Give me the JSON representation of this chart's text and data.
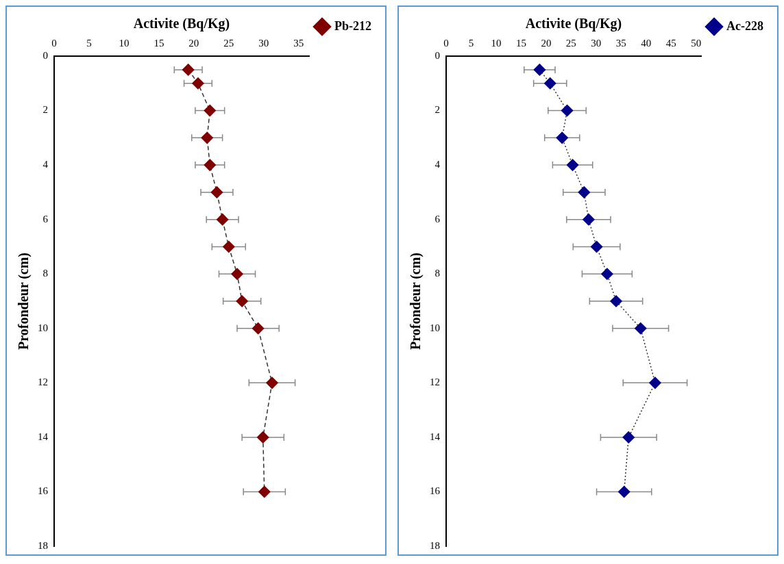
{
  "chart_data": [
    {
      "type": "line",
      "xlabel": "Activite (Bq/Kg)",
      "ylabel": "Profondeur (cm)",
      "xlim": [
        0,
        36.5
      ],
      "xticks": [
        0,
        5,
        10,
        15,
        20,
        25,
        30,
        35
      ],
      "ylim": [
        18,
        0
      ],
      "yticks": [
        0,
        2,
        4,
        6,
        8,
        10,
        12,
        14,
        16,
        18
      ],
      "grid": false,
      "legend": "top right",
      "marker": "diamond",
      "series": [
        {
          "name": "Pb-212",
          "color": "#7f0000",
          "line_style": "dashed",
          "x": [
            19.2,
            20.6,
            22.3,
            21.9,
            22.3,
            23.3,
            24.1,
            25.0,
            26.2,
            26.9,
            29.2,
            31.2,
            29.9,
            30.1
          ],
          "values": [
            0.5,
            1,
            2,
            3,
            4,
            5,
            6,
            7,
            8,
            9,
            10,
            12,
            14,
            16
          ],
          "xerrors": [
            2.0,
            2.0,
            2.1,
            2.2,
            2.1,
            2.3,
            2.3,
            2.4,
            2.6,
            2.7,
            3.0,
            3.3,
            3.0,
            3.0
          ]
        }
      ]
    },
    {
      "type": "line",
      "xlabel": "Activite (Bq/Kg)",
      "ylabel": "Profondeur (cm)",
      "xlim": [
        0,
        51
      ],
      "xticks": [
        0,
        5,
        10,
        15,
        20,
        25,
        30,
        35,
        40,
        45,
        50
      ],
      "ylim": [
        18,
        0
      ],
      "yticks": [
        0,
        2,
        4,
        6,
        8,
        10,
        12,
        14,
        16,
        18
      ],
      "grid": false,
      "legend": "top right",
      "marker": "diamond",
      "series": [
        {
          "name": "Ac-228",
          "color": "#00008b",
          "line_style": "dotted",
          "x": [
            18.7,
            20.8,
            24.2,
            23.2,
            25.3,
            27.6,
            28.5,
            30.1,
            32.2,
            34.0,
            38.9,
            41.8,
            36.5,
            35.6
          ],
          "values": [
            0.5,
            1,
            2,
            3,
            4,
            5,
            6,
            7,
            8,
            9,
            10,
            12,
            14,
            16
          ],
          "xerrors": [
            3.1,
            3.3,
            3.8,
            3.5,
            4.0,
            4.2,
            4.4,
            4.7,
            5.0,
            5.3,
            5.6,
            6.4,
            5.6,
            5.5
          ]
        }
      ]
    }
  ]
}
